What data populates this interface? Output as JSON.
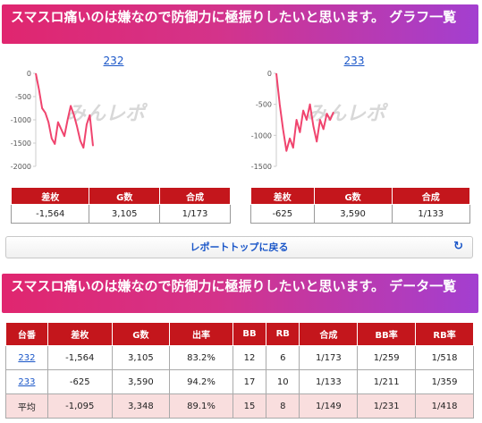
{
  "graph_section": {
    "title": "スマスロ痛いのは嫌なので防御力に極振りしたいと思います。 グラフ一覧"
  },
  "watermark": "みんレポ",
  "charts": [
    {
      "link": "232",
      "chart_data": {
        "type": "line",
        "title": "232",
        "ylim": [
          -2000,
          0
        ],
        "yticks": [
          0,
          -500,
          -1000,
          -1500,
          -2000
        ],
        "x": [
          0,
          4,
          8,
          12,
          16,
          20,
          24,
          28,
          32,
          36,
          40,
          44,
          48,
          52,
          56,
          60,
          64,
          68,
          72
        ],
        "series": [
          {
            "values": [
              0,
              -350,
              -750,
              -850,
              -1050,
              -1400,
              -1520,
              -1050,
              -1200,
              -1350,
              -1000,
              -700,
              -900,
              -1150,
              -1450,
              -1600,
              -1100,
              -900,
              -1564
            ]
          }
        ]
      },
      "stats": {
        "headers": [
          "差枚",
          "G数",
          "合成"
        ],
        "values": [
          "-1,564",
          "3,105",
          "1/173"
        ]
      }
    },
    {
      "link": "233",
      "chart_data": {
        "type": "line",
        "title": "233",
        "ylim": [
          -1500,
          0
        ],
        "yticks": [
          0,
          -500,
          -1000,
          -1500
        ],
        "x": [
          0,
          4,
          8,
          12,
          16,
          20,
          24,
          28,
          32,
          36,
          40,
          44,
          48,
          52,
          56,
          60,
          64,
          68
        ],
        "series": [
          {
            "values": [
              0,
              -500,
              -900,
              -1250,
              -1050,
              -1200,
              -750,
              -950,
              -600,
              -750,
              -500,
              -850,
              -1100,
              -750,
              -900,
              -650,
              -750,
              -625
            ]
          }
        ]
      },
      "stats": {
        "headers": [
          "差枚",
          "G数",
          "合成"
        ],
        "values": [
          "-625",
          "3,590",
          "1/133"
        ]
      }
    }
  ],
  "back_button": {
    "label": "レポートトップに戻る",
    "icon": "refresh-icon"
  },
  "data_section": {
    "title": "スマスロ痛いのは嫌なので防御力に極振りしたいと思います。 データ一覧",
    "headers": [
      "台番",
      "差枚",
      "G数",
      "出率",
      "BB",
      "RB",
      "合成",
      "BB率",
      "RB率"
    ],
    "rows": [
      [
        "232",
        "-1,564",
        "3,105",
        "83.2%",
        "12",
        "6",
        "1/173",
        "1/259",
        "1/518"
      ],
      [
        "233",
        "-625",
        "3,590",
        "94.2%",
        "17",
        "10",
        "1/133",
        "1/211",
        "1/359"
      ]
    ],
    "avg_row": [
      "平均",
      "-1,095",
      "3,348",
      "89.1%",
      "15",
      "8",
      "1/149",
      "1/231",
      "1/418"
    ]
  },
  "colors": {
    "accent": "#c4161c",
    "line": "#f0446e",
    "link": "#1a56c8"
  }
}
